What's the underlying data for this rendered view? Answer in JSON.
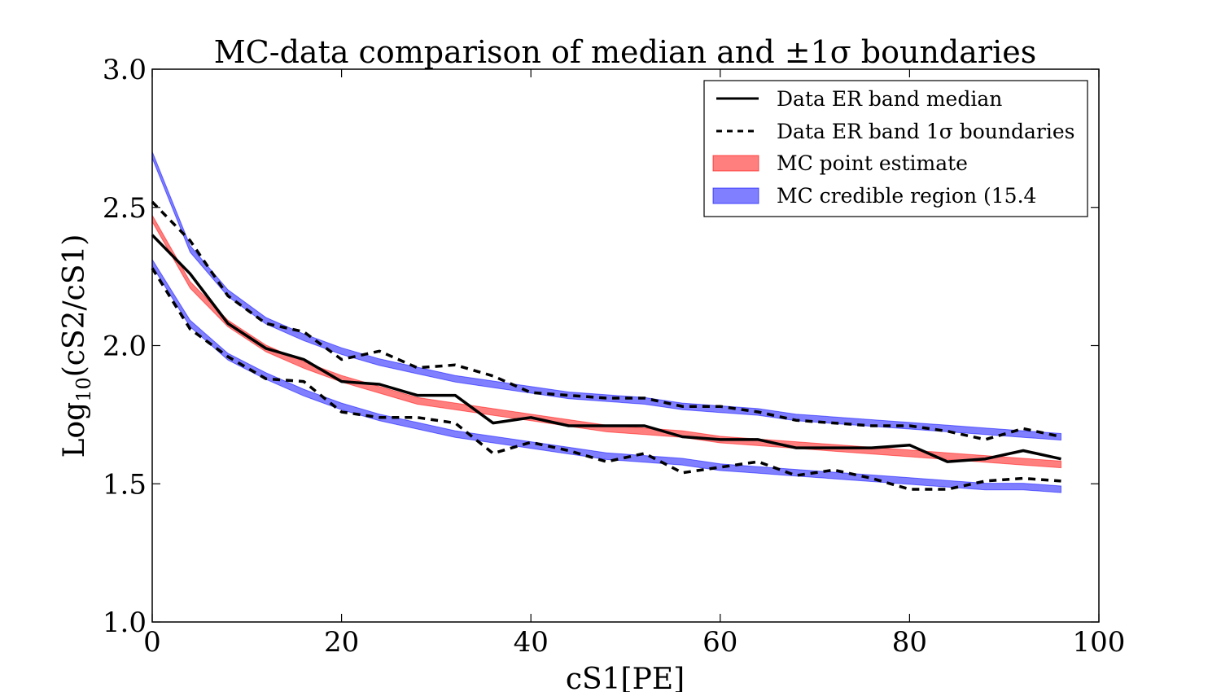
{
  "chart_data": {
    "type": "line",
    "title": "MC-data comparison of median and ±1σ boundaries",
    "xlabel": "cS1[PE]",
    "ylabel": "Log10(cS2/cS1)",
    "ylabel_main": "Log",
    "ylabel_sub": "10",
    "ylabel_rest": "(cS2/cS1)",
    "xlim": [
      0,
      100
    ],
    "ylim": [
      1.0,
      3.0
    ],
    "xticks": [
      0,
      20,
      40,
      60,
      80,
      100
    ],
    "yticks": [
      1.0,
      1.5,
      2.0,
      2.5,
      3.0
    ],
    "xtick_labels": [
      "0",
      "20",
      "40",
      "60",
      "80",
      "100"
    ],
    "ytick_labels": [
      "1.0",
      "1.5",
      "2.0",
      "2.5",
      "3.0"
    ],
    "grid": false,
    "legend_position": "top-right",
    "legend": [
      {
        "label": "Data ER band median",
        "style": "solid-black"
      },
      {
        "label": "Data ER band 1σ boundaries",
        "style": "dashed-black"
      },
      {
        "label": "MC point estimate",
        "style": "fill-red"
      },
      {
        "label": "MC credible region (15.4",
        "style": "fill-blue"
      }
    ],
    "colors": {
      "data": "#000000",
      "mc_point": "#ff0000",
      "mc_region": "#0000ff"
    },
    "x": [
      0,
      4,
      8,
      12,
      16,
      20,
      24,
      28,
      32,
      36,
      40,
      44,
      48,
      52,
      56,
      60,
      64,
      68,
      72,
      76,
      80,
      84,
      88,
      92,
      96
    ],
    "series": [
      {
        "name": "Data ER band median",
        "values": [
          2.4,
          2.26,
          2.08,
          1.99,
          1.95,
          1.87,
          1.86,
          1.82,
          1.82,
          1.72,
          1.74,
          1.71,
          1.71,
          1.71,
          1.67,
          1.66,
          1.66,
          1.63,
          1.63,
          1.63,
          1.64,
          1.58,
          1.59,
          1.62,
          1.59
        ]
      },
      {
        "name": "Data ER band 1σ boundaries",
        "upper": [
          2.52,
          2.38,
          2.18,
          2.08,
          2.05,
          1.95,
          1.98,
          1.92,
          1.93,
          1.89,
          1.83,
          1.82,
          1.81,
          1.81,
          1.78,
          1.78,
          1.76,
          1.73,
          1.72,
          1.71,
          1.71,
          1.69,
          1.66,
          1.7,
          1.67
        ],
        "lower": [
          2.28,
          2.06,
          1.96,
          1.88,
          1.87,
          1.76,
          1.74,
          1.74,
          1.72,
          1.61,
          1.65,
          1.62,
          1.58,
          1.61,
          1.54,
          1.56,
          1.58,
          1.53,
          1.55,
          1.52,
          1.48,
          1.48,
          1.51,
          1.52,
          1.51
        ]
      },
      {
        "name": "MC point estimate",
        "center": [
          2.46,
          2.22,
          2.08,
          1.99,
          1.93,
          1.88,
          1.84,
          1.8,
          1.78,
          1.76,
          1.74,
          1.72,
          1.7,
          1.69,
          1.68,
          1.66,
          1.65,
          1.64,
          1.63,
          1.62,
          1.61,
          1.6,
          1.59,
          1.58,
          1.57
        ],
        "halfwidth": 0.012
      },
      {
        "name": "MC credible region (15.4",
        "upper": [
          2.69,
          2.35,
          2.19,
          2.09,
          2.03,
          1.98,
          1.94,
          1.91,
          1.88,
          1.86,
          1.84,
          1.82,
          1.81,
          1.8,
          1.78,
          1.77,
          1.76,
          1.74,
          1.73,
          1.72,
          1.71,
          1.7,
          1.69,
          1.68,
          1.67
        ],
        "lower": [
          2.3,
          2.08,
          1.96,
          1.89,
          1.83,
          1.78,
          1.74,
          1.71,
          1.68,
          1.66,
          1.64,
          1.62,
          1.6,
          1.59,
          1.58,
          1.56,
          1.55,
          1.54,
          1.53,
          1.52,
          1.51,
          1.5,
          1.49,
          1.49,
          1.48
        ],
        "halfwidth": 0.012
      }
    ]
  }
}
